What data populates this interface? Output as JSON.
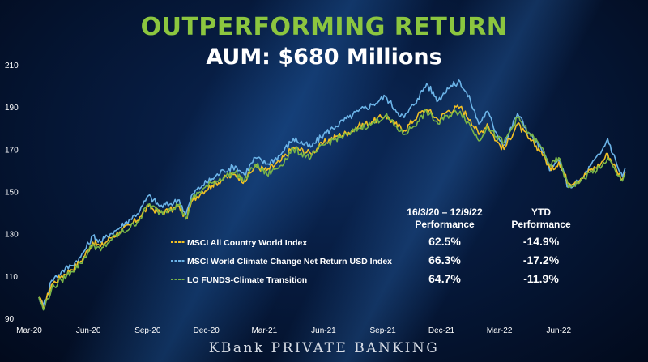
{
  "header": {
    "title": "OUTPERFORMING RETURN",
    "subtitle": "AUM: $680 Millions"
  },
  "footer": {
    "brand": "KBank PRIVATE BANKING"
  },
  "colors": {
    "msci_acwi": "#f2c024",
    "msci_climate": "#6cb4e8",
    "lo_funds": "#7ab648"
  },
  "table": {
    "col1_header_line1": "16/3/20 – 12/9/22",
    "col1_header_line2": "Performance",
    "col2_header_line1": "YTD",
    "col2_header_line2": "Performance",
    "rows": [
      {
        "label": "MSCI All Country World Index",
        "period": "62.5%",
        "ytd": "-14.9%",
        "color": "#f2c024"
      },
      {
        "label": "MSCI World Climate Change Net Return USD Index",
        "period": "66.3%",
        "ytd": "-17.2%",
        "color": "#6cb4e8"
      },
      {
        "label": "LO FUNDS-Climate Transition",
        "period": "64.7%",
        "ytd": "-11.9%",
        "color": "#7ab648"
      }
    ]
  },
  "chart_data": {
    "type": "line",
    "xlabel": "",
    "ylabel": "",
    "ylim": [
      90,
      210
    ],
    "yticks": [
      90,
      110,
      130,
      150,
      170,
      190,
      210
    ],
    "x_tick_labels": [
      "Mar-20",
      "Jun-20",
      "Sep-20",
      "Dec-20",
      "Mar-21",
      "Jun-21",
      "Sep-21",
      "Dec-21",
      "Mar-22",
      "Jun-22"
    ],
    "x_range": [
      "2020-03-01",
      "2022-09-30"
    ],
    "grid": false,
    "legend": "in-table",
    "series": [
      {
        "name": "MSCI All Country World Index",
        "color": "#f2c024",
        "points": [
          [
            "2020-03-16",
            100
          ],
          [
            "2020-03-23",
            95
          ],
          [
            "2020-04-05",
            106
          ],
          [
            "2020-04-20",
            110
          ],
          [
            "2020-05-05",
            113
          ],
          [
            "2020-05-20",
            117
          ],
          [
            "2020-06-08",
            126
          ],
          [
            "2020-06-20",
            124
          ],
          [
            "2020-07-05",
            128
          ],
          [
            "2020-07-20",
            131
          ],
          [
            "2020-08-05",
            134
          ],
          [
            "2020-08-20",
            138
          ],
          [
            "2020-09-02",
            143
          ],
          [
            "2020-09-20",
            140
          ],
          [
            "2020-10-05",
            141
          ],
          [
            "2020-10-20",
            143
          ],
          [
            "2020-10-30",
            137
          ],
          [
            "2020-11-10",
            146
          ],
          [
            "2020-11-25",
            150
          ],
          [
            "2020-12-10",
            153
          ],
          [
            "2020-12-28",
            156
          ],
          [
            "2021-01-15",
            158
          ],
          [
            "2021-01-29",
            155
          ],
          [
            "2021-02-15",
            162
          ],
          [
            "2021-03-05",
            160
          ],
          [
            "2021-03-25",
            164
          ],
          [
            "2021-04-15",
            171
          ],
          [
            "2021-05-12",
            168
          ],
          [
            "2021-06-01",
            173
          ],
          [
            "2021-06-20",
            176
          ],
          [
            "2021-07-10",
            178
          ],
          [
            "2021-07-25",
            181
          ],
          [
            "2021-08-15",
            183
          ],
          [
            "2021-09-05",
            186
          ],
          [
            "2021-09-20",
            182
          ],
          [
            "2021-10-04",
            179
          ],
          [
            "2021-10-25",
            186
          ],
          [
            "2021-11-08",
            189
          ],
          [
            "2021-11-26",
            184
          ],
          [
            "2021-12-10",
            188
          ],
          [
            "2021-12-30",
            190
          ],
          [
            "2022-01-15",
            184
          ],
          [
            "2022-01-28",
            177
          ],
          [
            "2022-02-10",
            182
          ],
          [
            "2022-02-24",
            174
          ],
          [
            "2022-03-08",
            170
          ],
          [
            "2022-03-29",
            182
          ],
          [
            "2022-04-15",
            175
          ],
          [
            "2022-05-05",
            169
          ],
          [
            "2022-05-20",
            160
          ],
          [
            "2022-06-01",
            164
          ],
          [
            "2022-06-16",
            154
          ],
          [
            "2022-07-05",
            156
          ],
          [
            "2022-07-20",
            160
          ],
          [
            "2022-08-05",
            163
          ],
          [
            "2022-08-16",
            168
          ],
          [
            "2022-08-30",
            160
          ],
          [
            "2022-09-08",
            156
          ],
          [
            "2022-09-12",
            159
          ]
        ]
      },
      {
        "name": "MSCI World Climate Change Net Return USD Index",
        "color": "#6cb4e8",
        "points": [
          [
            "2020-03-16",
            100
          ],
          [
            "2020-03-23",
            96
          ],
          [
            "2020-04-05",
            108
          ],
          [
            "2020-04-20",
            112
          ],
          [
            "2020-05-05",
            115
          ],
          [
            "2020-05-20",
            119
          ],
          [
            "2020-06-08",
            129
          ],
          [
            "2020-06-20",
            126
          ],
          [
            "2020-07-05",
            130
          ],
          [
            "2020-07-20",
            133
          ],
          [
            "2020-08-05",
            137
          ],
          [
            "2020-08-20",
            141
          ],
          [
            "2020-09-02",
            148
          ],
          [
            "2020-09-20",
            143
          ],
          [
            "2020-10-05",
            144
          ],
          [
            "2020-10-20",
            146
          ],
          [
            "2020-10-30",
            139
          ],
          [
            "2020-11-10",
            149
          ],
          [
            "2020-11-25",
            153
          ],
          [
            "2020-12-10",
            156
          ],
          [
            "2020-12-28",
            160
          ],
          [
            "2021-01-15",
            162
          ],
          [
            "2021-01-29",
            158
          ],
          [
            "2021-02-15",
            166
          ],
          [
            "2021-03-05",
            163
          ],
          [
            "2021-03-25",
            167
          ],
          [
            "2021-04-15",
            175
          ],
          [
            "2021-05-12",
            171
          ],
          [
            "2021-06-01",
            177
          ],
          [
            "2021-06-20",
            181
          ],
          [
            "2021-07-10",
            185
          ],
          [
            "2021-07-25",
            188
          ],
          [
            "2021-08-15",
            191
          ],
          [
            "2021-09-05",
            195
          ],
          [
            "2021-09-20",
            189
          ],
          [
            "2021-10-04",
            185
          ],
          [
            "2021-10-25",
            194
          ],
          [
            "2021-11-08",
            201
          ],
          [
            "2021-11-26",
            193
          ],
          [
            "2021-12-10",
            199
          ],
          [
            "2021-12-30",
            202
          ],
          [
            "2022-01-15",
            193
          ],
          [
            "2022-01-28",
            182
          ],
          [
            "2022-02-10",
            188
          ],
          [
            "2022-02-24",
            178
          ],
          [
            "2022-03-08",
            172
          ],
          [
            "2022-03-29",
            187
          ],
          [
            "2022-04-15",
            178
          ],
          [
            "2022-05-05",
            170
          ],
          [
            "2022-05-20",
            160
          ],
          [
            "2022-06-01",
            165
          ],
          [
            "2022-06-16",
            152
          ],
          [
            "2022-07-05",
            155
          ],
          [
            "2022-07-20",
            162
          ],
          [
            "2022-08-05",
            168
          ],
          [
            "2022-08-16",
            175
          ],
          [
            "2022-08-30",
            163
          ],
          [
            "2022-09-08",
            157
          ],
          [
            "2022-09-12",
            161
          ]
        ]
      },
      {
        "name": "LO FUNDS-Climate Transition",
        "color": "#7ab648",
        "points": [
          [
            "2020-03-16",
            100
          ],
          [
            "2020-03-23",
            94
          ],
          [
            "2020-04-05",
            104
          ],
          [
            "2020-04-20",
            108
          ],
          [
            "2020-05-05",
            112
          ],
          [
            "2020-05-20",
            116
          ],
          [
            "2020-06-08",
            125
          ],
          [
            "2020-06-20",
            122
          ],
          [
            "2020-07-05",
            127
          ],
          [
            "2020-07-20",
            130
          ],
          [
            "2020-08-05",
            133
          ],
          [
            "2020-08-20",
            137
          ],
          [
            "2020-09-02",
            144
          ],
          [
            "2020-09-20",
            140
          ],
          [
            "2020-10-05",
            142
          ],
          [
            "2020-10-20",
            144
          ],
          [
            "2020-10-30",
            137
          ],
          [
            "2020-11-10",
            147
          ],
          [
            "2020-11-25",
            151
          ],
          [
            "2020-12-10",
            154
          ],
          [
            "2020-12-28",
            157
          ],
          [
            "2021-01-15",
            159
          ],
          [
            "2021-01-29",
            155
          ],
          [
            "2021-02-15",
            163
          ],
          [
            "2021-03-05",
            158
          ],
          [
            "2021-03-25",
            162
          ],
          [
            "2021-04-15",
            170
          ],
          [
            "2021-05-12",
            166
          ],
          [
            "2021-06-01",
            172
          ],
          [
            "2021-06-20",
            175
          ],
          [
            "2021-07-10",
            177
          ],
          [
            "2021-07-25",
            180
          ],
          [
            "2021-08-15",
            182
          ],
          [
            "2021-09-05",
            186
          ],
          [
            "2021-09-20",
            181
          ],
          [
            "2021-10-04",
            177
          ],
          [
            "2021-10-25",
            183
          ],
          [
            "2021-11-08",
            188
          ],
          [
            "2021-11-26",
            182
          ],
          [
            "2021-12-10",
            186
          ],
          [
            "2021-12-30",
            188
          ],
          [
            "2022-01-15",
            181
          ],
          [
            "2022-01-28",
            174
          ],
          [
            "2022-02-10",
            181
          ],
          [
            "2022-02-24",
            176
          ],
          [
            "2022-03-08",
            173
          ],
          [
            "2022-03-29",
            185
          ],
          [
            "2022-04-15",
            178
          ],
          [
            "2022-05-05",
            171
          ],
          [
            "2022-05-20",
            162
          ],
          [
            "2022-06-01",
            166
          ],
          [
            "2022-06-16",
            152
          ],
          [
            "2022-07-05",
            155
          ],
          [
            "2022-07-20",
            159
          ],
          [
            "2022-08-05",
            161
          ],
          [
            "2022-08-16",
            166
          ],
          [
            "2022-08-30",
            158
          ],
          [
            "2022-09-08",
            155
          ],
          [
            "2022-09-12",
            158
          ]
        ]
      }
    ]
  }
}
